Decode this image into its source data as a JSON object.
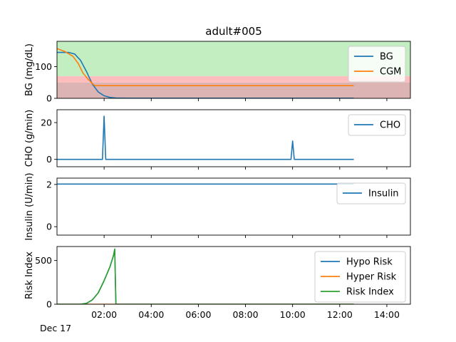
{
  "chart_data": {
    "type": "line",
    "title": "adult#005",
    "date_label": "Dec 17",
    "x_range_hours": [
      0,
      15
    ],
    "x_ticks": [
      {
        "hour": 2,
        "label": "02:00"
      },
      {
        "hour": 4,
        "label": "04:00"
      },
      {
        "hour": 6,
        "label": "06:00"
      },
      {
        "hour": 8,
        "label": "08:00"
      },
      {
        "hour": 10,
        "label": "10:00"
      },
      {
        "hour": 12,
        "label": "12:00"
      },
      {
        "hour": 14,
        "label": "14:00"
      }
    ],
    "subplots": [
      {
        "id": "bg",
        "ylabel": "BG (mg/dL)",
        "ylim": [
          0,
          180
        ],
        "yticks": [
          0,
          100
        ],
        "bands": [
          {
            "from": 70,
            "to": 180,
            "color": "#c2eec2"
          },
          {
            "from": 50,
            "to": 70,
            "color": "#ffbdbd"
          },
          {
            "from": 0,
            "to": 50,
            "color": "#dcb4b4"
          }
        ],
        "legend_position": "upper-right",
        "series": [
          {
            "name": "BG",
            "color": "#1f77b4",
            "x": [
              0,
              0.5,
              0.75,
              1.0,
              1.25,
              1.5,
              1.75,
              2.0,
              2.25,
              2.5,
              3.0,
              4.0,
              12.6
            ],
            "y": [
              145,
              145,
              140,
              120,
              85,
              45,
              20,
              8,
              3,
              1,
              0.5,
              0.5,
              0.5
            ]
          },
          {
            "name": "CGM",
            "color": "#ff7f0e",
            "x": [
              0,
              0.33,
              0.67,
              0.9,
              1.1,
              1.3,
              1.5,
              1.6,
              12.6
            ],
            "y": [
              157,
              148,
              133,
              110,
              80,
              62,
              47,
              40,
              40
            ]
          }
        ]
      },
      {
        "id": "cho",
        "ylabel": "CHO (g/min)",
        "ylim": [
          -4,
          27
        ],
        "yticks": [
          0,
          20
        ],
        "legend_position": "upper-right",
        "series": [
          {
            "name": "CHO",
            "color": "#1f77b4",
            "x": [
              0,
              1.93,
              2.0,
              2.07,
              9.93,
              10.0,
              10.07,
              12.6
            ],
            "y": [
              0,
              0,
              23.5,
              0,
              0,
              10,
              0,
              0
            ]
          }
        ]
      },
      {
        "id": "insulin",
        "ylabel": "Insulin (U/min)",
        "ylim": [
          -0.4,
          2.3
        ],
        "yticks": [
          0,
          2
        ],
        "legend_position": "upper-right",
        "series": [
          {
            "name": "Insulin",
            "color": "#1f77b4",
            "x": [
              0,
              12.6
            ],
            "y": [
              2.02,
              2.02
            ]
          }
        ]
      },
      {
        "id": "risk",
        "ylabel": "Risk Index",
        "ylim": [
          0,
          660
        ],
        "yticks": [
          0,
          500
        ],
        "legend_position": "upper-right",
        "series": [
          {
            "name": "Hypo Risk",
            "color": "#1f77b4",
            "x": [
              0,
              1.0,
              1.25,
              1.5,
              1.75,
              2.0,
              2.25,
              2.4,
              2.45,
              2.5,
              12.6
            ],
            "y": [
              0,
              0,
              10,
              50,
              130,
              270,
              430,
              560,
              630,
              0,
              0
            ]
          },
          {
            "name": "Hyper Risk",
            "color": "#ff7f0e",
            "x": [
              0,
              12.6
            ],
            "y": [
              0,
              0
            ]
          },
          {
            "name": "Risk Index",
            "color": "#2ca02c",
            "x": [
              0,
              1.0,
              1.25,
              1.5,
              1.75,
              2.0,
              2.25,
              2.4,
              2.45,
              2.5,
              12.6
            ],
            "y": [
              0,
              0,
              10,
              50,
              130,
              270,
              430,
              560,
              630,
              0,
              0
            ]
          }
        ]
      }
    ]
  }
}
